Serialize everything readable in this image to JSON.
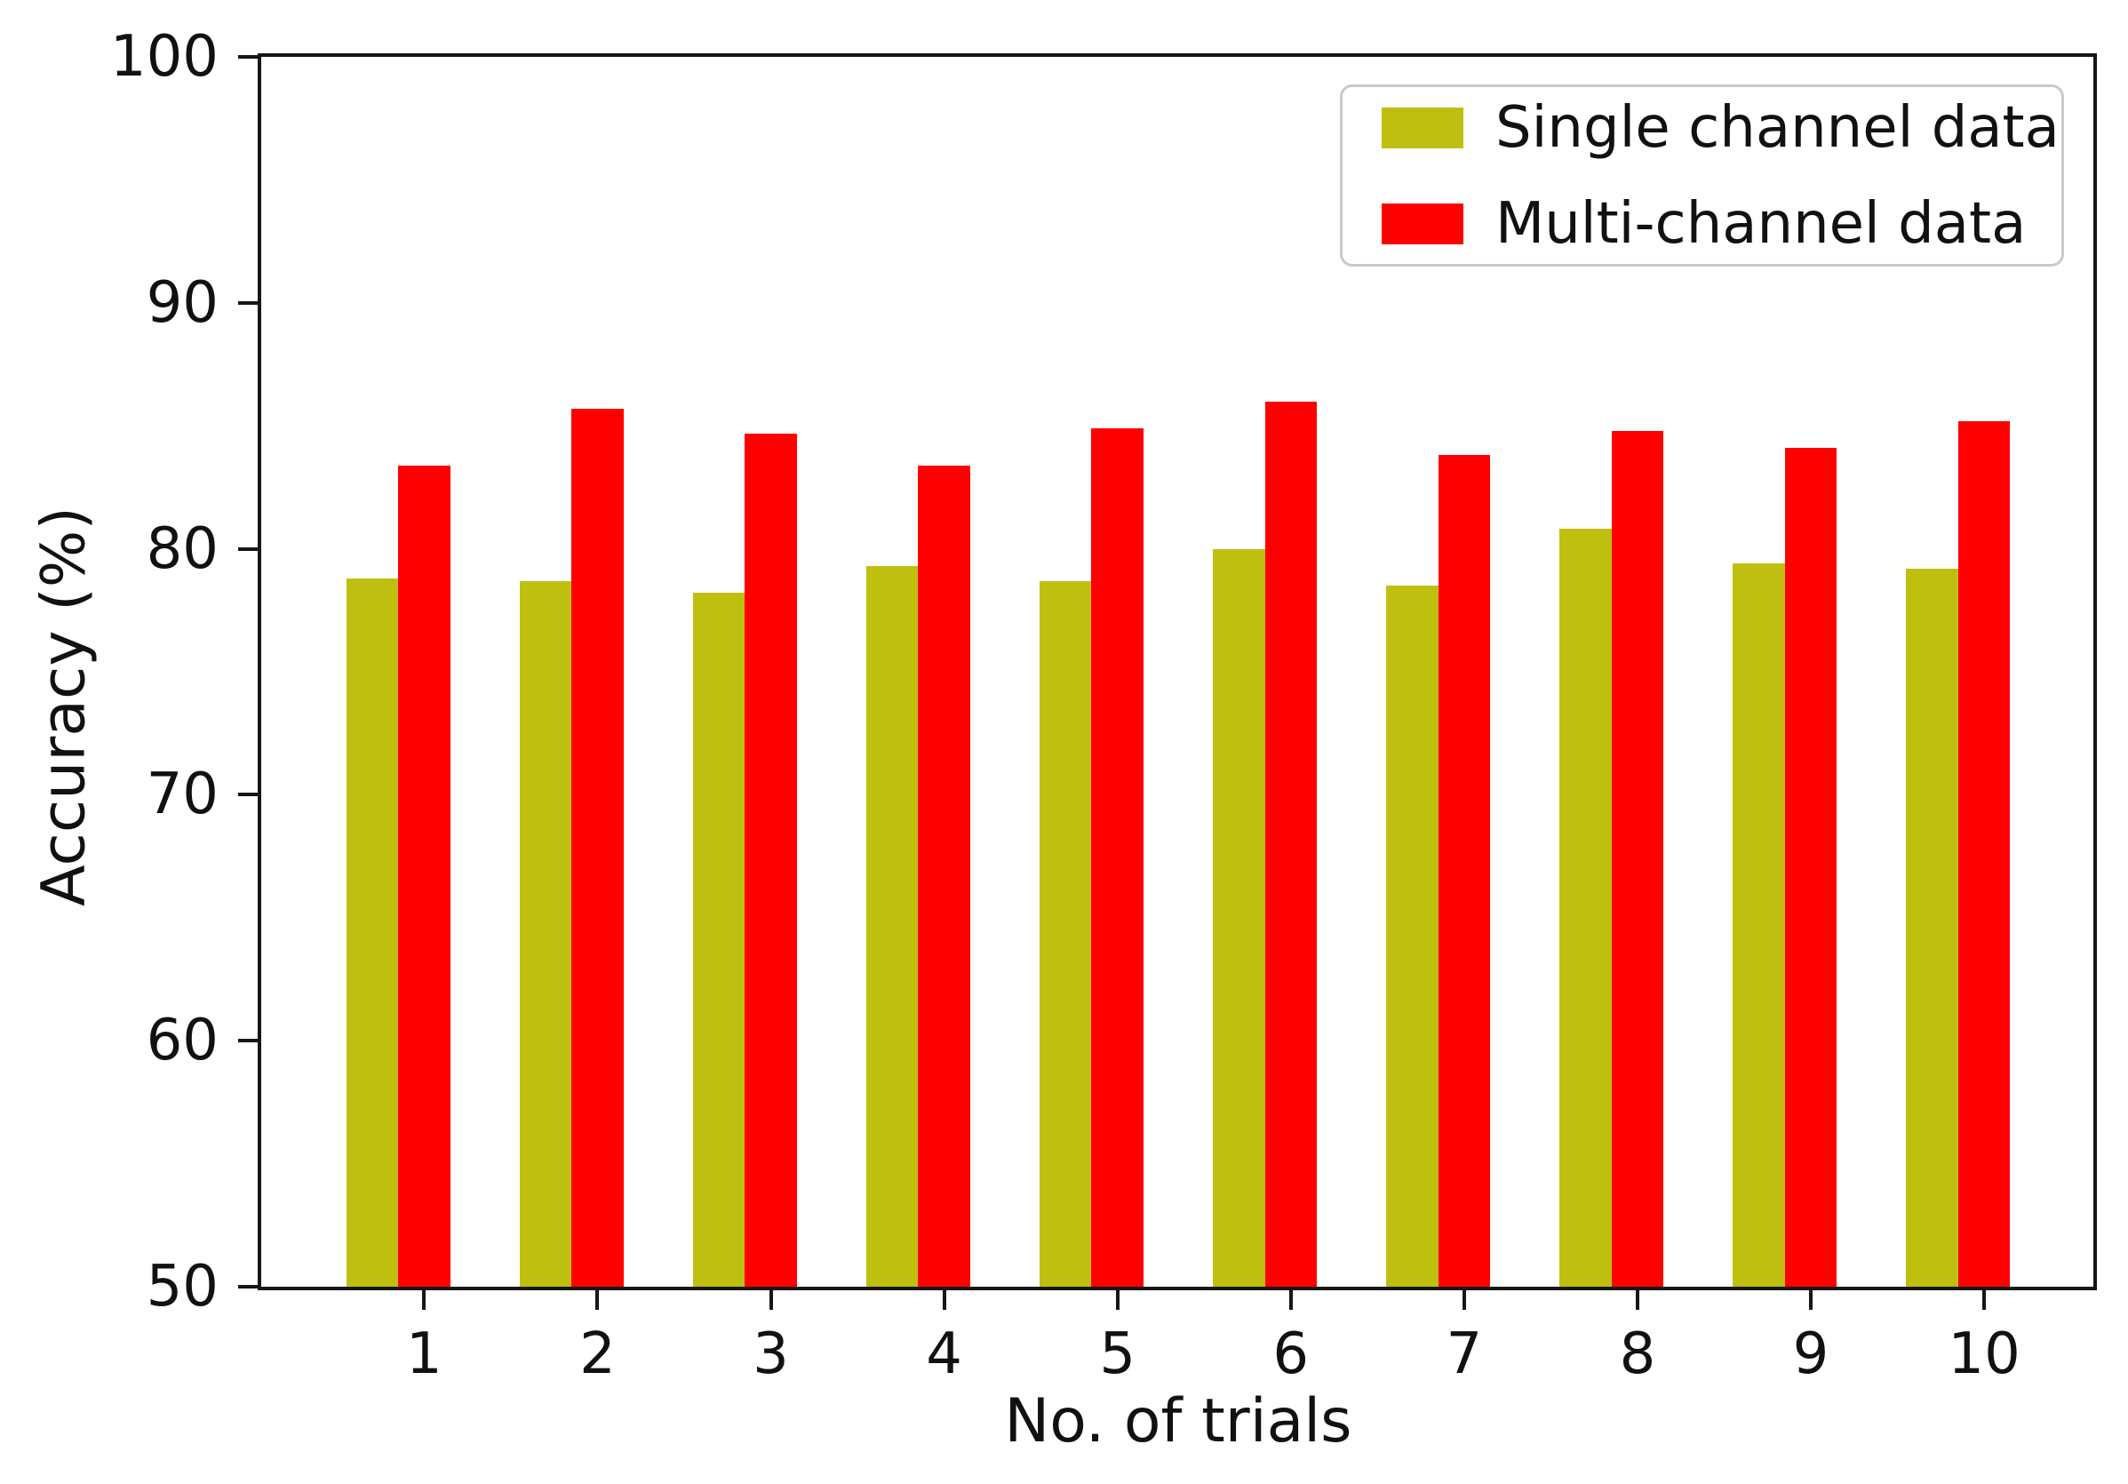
{
  "chart_data": {
    "type": "bar",
    "title": "",
    "xlabel": "No. of trials",
    "ylabel": "Accuracy (%)",
    "categories": [
      "1",
      "2",
      "3",
      "4",
      "5",
      "6",
      "7",
      "8",
      "9",
      "10"
    ],
    "series": [
      {
        "name": "Single channel data",
        "color": "#bfbf10",
        "offset": -0.3,
        "values": [
          78.8,
          78.7,
          78.2,
          79.3,
          78.7,
          80.0,
          78.5,
          80.8,
          79.4,
          79.2
        ]
      },
      {
        "name": "Multi-channel data",
        "color": "#ff0000",
        "offset": 0,
        "values": [
          83.4,
          85.7,
          84.7,
          83.4,
          84.9,
          86.0,
          83.8,
          84.8,
          84.1,
          85.2
        ]
      }
    ],
    "bar_width": 0.3,
    "ylim": [
      50,
      100
    ],
    "xlim": [
      0.06,
      10.63
    ],
    "yticks": [
      50,
      60,
      70,
      80,
      90,
      100
    ],
    "grid": false,
    "legend_position": "upper right",
    "axis_color": "#161616"
  }
}
